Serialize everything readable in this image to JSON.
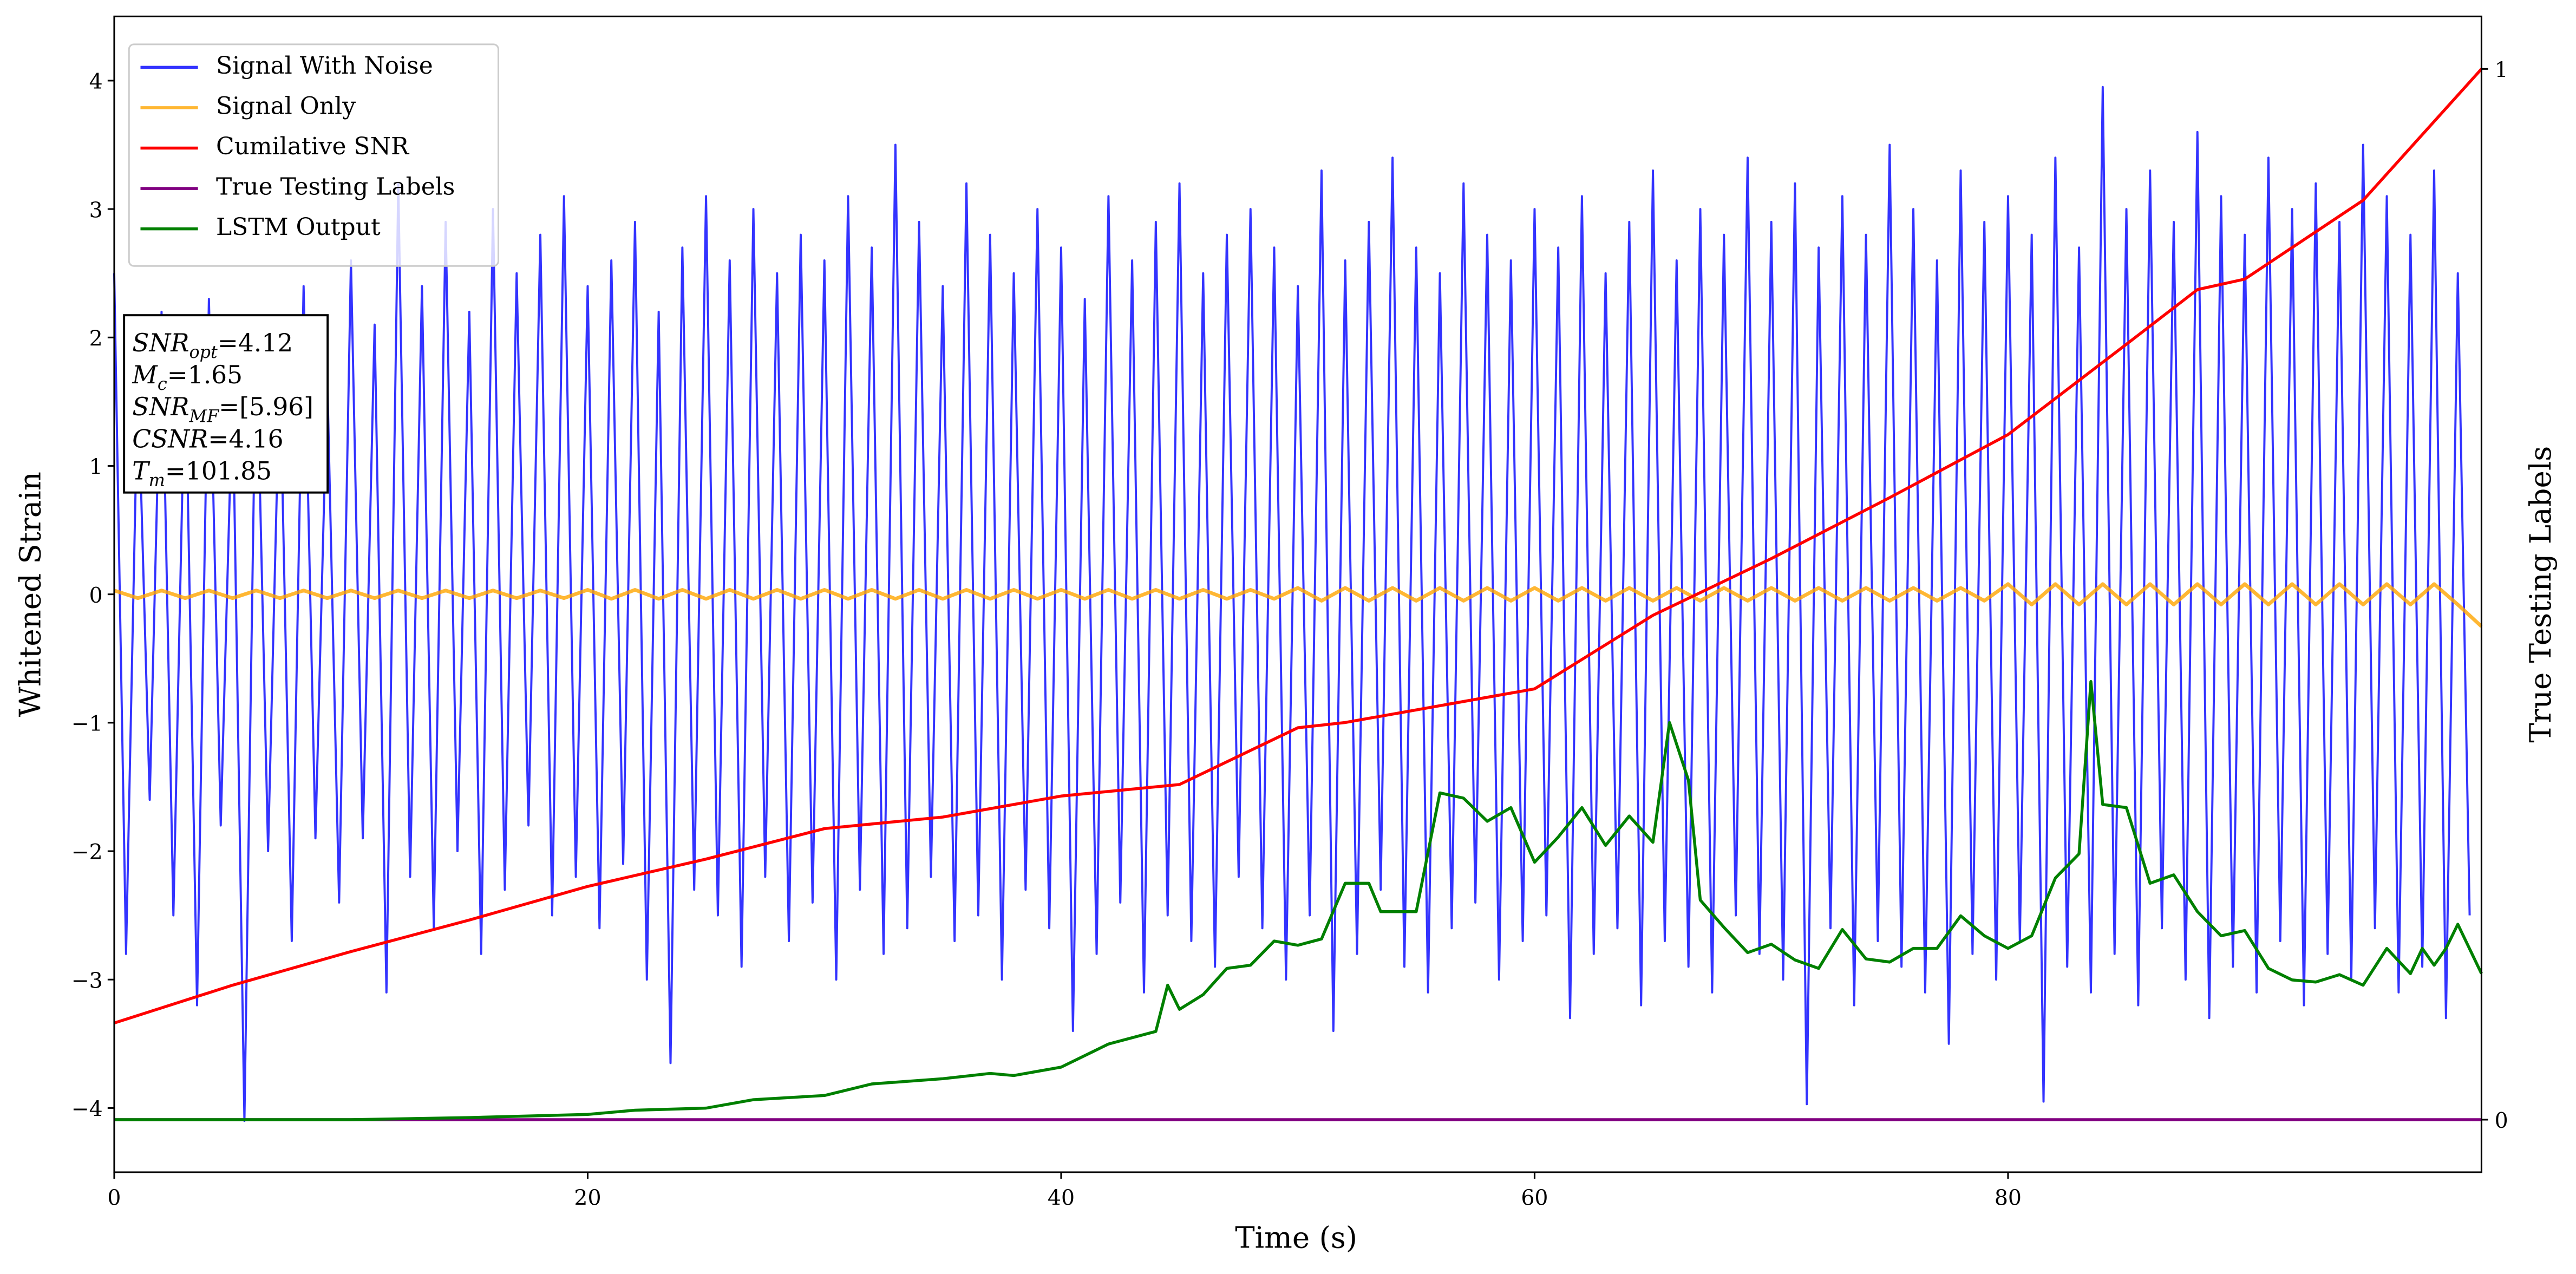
{
  "chart_data": {
    "type": "line",
    "xlabel": "Time (s)",
    "ylabel": "Whitened Strain",
    "y2label": "True Testing Labels",
    "xlim": [
      0,
      100
    ],
    "xticks": [
      0,
      20,
      40,
      60,
      80
    ],
    "ylim": [
      -4.5,
      4.5
    ],
    "yticks": [
      {
        "value": -4,
        "label": "−4"
      },
      {
        "value": -3,
        "label": "−3"
      },
      {
        "value": -2,
        "label": "−2"
      },
      {
        "value": -1,
        "label": "−1"
      },
      0,
      1,
      2,
      3,
      4
    ],
    "y2lim": [
      -0.05,
      1.05
    ],
    "y2ticks": [
      0,
      1
    ],
    "legend": "upper left",
    "grid": false,
    "annotations": [
      {
        "main": "SNR",
        "sub": "opt",
        "value": "=4.12"
      },
      {
        "main": "M",
        "sub": "c",
        "value": "=1.65"
      },
      {
        "main": "SNR",
        "sub": "MF",
        "value": "=[5.96]"
      },
      {
        "main": "CSNR",
        "value": "=4.16"
      },
      {
        "main": "T",
        "sub": "m",
        "value": "=101.85"
      }
    ],
    "series": [
      {
        "name": "Signal With Noise",
        "color": "#0000ff",
        "alpha": 0.8,
        "axis": "y",
        "x": [
          0,
          0.5,
          1,
          1.5,
          2,
          2.5,
          3,
          3.5,
          4,
          4.5,
          5,
          5.5,
          6,
          6.5,
          7,
          7.5,
          8,
          8.5,
          9,
          9.5,
          10,
          10.5,
          11,
          11.5,
          12,
          12.5,
          13,
          13.5,
          14,
          14.5,
          15,
          15.5,
          16,
          16.5,
          17,
          17.5,
          18,
          18.5,
          19,
          19.5,
          20,
          20.5,
          21,
          21.5,
          22,
          22.5,
          23,
          23.5,
          24,
          24.5,
          25,
          25.5,
          26,
          26.5,
          27,
          27.5,
          28,
          28.5,
          29,
          29.5,
          30,
          30.5,
          31,
          31.5,
          32,
          32.5,
          33,
          33.5,
          34,
          34.5,
          35,
          35.5,
          36,
          36.5,
          37,
          37.5,
          38,
          38.5,
          39,
          39.5,
          40,
          40.5,
          41,
          41.5,
          42,
          42.5,
          43,
          43.5,
          44,
          44.5,
          45,
          45.5,
          46,
          46.5,
          47,
          47.5,
          48,
          48.5,
          49,
          49.5,
          50,
          50.5,
          51,
          51.5,
          52,
          52.5,
          53,
          53.5,
          54,
          54.5,
          55,
          55.5,
          56,
          56.5,
          57,
          57.5,
          58,
          58.5,
          59,
          59.5,
          60,
          60.5,
          61,
          61.5,
          62,
          62.5,
          63,
          63.5,
          64,
          64.5,
          65,
          65.5,
          66,
          66.5,
          67,
          67.5,
          68,
          68.5,
          69,
          69.5,
          70,
          70.5,
          71,
          71.5,
          72,
          72.5,
          73,
          73.5,
          74,
          74.5,
          75,
          75.5,
          76,
          76.5,
          77,
          77.5,
          78,
          78.5,
          79,
          79.5,
          80,
          80.5,
          81,
          81.5,
          82,
          82.5,
          83,
          83.5,
          84,
          84.5,
          85,
          85.5,
          86,
          86.5,
          87,
          87.5,
          88,
          88.5,
          89,
          89.5,
          90,
          90.5,
          91,
          91.5,
          92,
          92.5,
          93,
          93.5,
          94,
          94.5,
          95,
          95.5,
          96,
          96.5,
          97,
          97.5,
          98,
          98.5,
          99,
          99.5
        ],
        "values": [
          2.5,
          -2.8,
          1.7,
          -1.6,
          2.2,
          -2.5,
          1.9,
          -3.2,
          2.3,
          -1.8,
          1.6,
          -4.1,
          2.1,
          -2.0,
          1.8,
          -2.7,
          2.4,
          -1.9,
          1.7,
          -2.4,
          2.6,
          -1.9,
          2.1,
          -3.1,
          3.2,
          -2.2,
          2.4,
          -2.6,
          2.9,
          -2.0,
          2.2,
          -2.8,
          3.0,
          -2.3,
          2.5,
          -1.8,
          2.8,
          -2.5,
          3.1,
          -2.2,
          2.4,
          -2.6,
          2.6,
          -2.1,
          2.9,
          -3.0,
          2.2,
          -3.65,
          2.7,
          -2.3,
          3.1,
          -2.5,
          2.6,
          -2.9,
          3.0,
          -2.2,
          2.5,
          -2.7,
          2.8,
          -2.4,
          2.6,
          -3.0,
          3.1,
          -2.3,
          2.7,
          -2.8,
          3.5,
          -2.6,
          2.9,
          -2.2,
          2.4,
          -2.7,
          3.2,
          -2.5,
          2.8,
          -3.0,
          2.5,
          -2.3,
          3.0,
          -2.6,
          2.7,
          -3.4,
          2.3,
          -2.8,
          3.1,
          -2.4,
          2.6,
          -3.1,
          2.9,
          -2.5,
          3.2,
          -2.7,
          2.5,
          -2.9,
          2.8,
          -2.2,
          3.0,
          -2.6,
          2.7,
          -3.0,
          2.4,
          -2.5,
          3.3,
          -3.4,
          2.6,
          -2.8,
          2.9,
          -2.3,
          3.4,
          -2.9,
          2.7,
          -3.1,
          2.5,
          -2.6,
          3.2,
          -2.4,
          2.8,
          -3.0,
          2.6,
          -2.7,
          3.0,
          -2.5,
          2.7,
          -3.3,
          3.1,
          -2.8,
          2.5,
          -2.6,
          2.9,
          -3.2,
          3.3,
          -2.7,
          2.6,
          -2.9,
          3.0,
          -3.1,
          2.8,
          -2.5,
          3.4,
          -2.8,
          2.9,
          -3.0,
          3.2,
          -3.97,
          2.7,
          -2.6,
          3.1,
          -3.2,
          2.8,
          -2.7,
          3.5,
          -2.9,
          3.0,
          -3.1,
          2.6,
          -3.5,
          3.3,
          -2.8,
          2.9,
          -3.0,
          3.1,
          -2.7,
          2.8,
          -3.95,
          3.4,
          -2.9,
          2.7,
          -3.1,
          3.95,
          -2.8,
          3.0,
          -3.2,
          3.3,
          -2.6,
          2.9,
          -3.0,
          3.6,
          -3.3,
          3.1,
          -2.9,
          2.8,
          -3.1,
          3.4,
          -2.7,
          3.0,
          -3.2,
          3.2,
          -2.8,
          2.9,
          -3.0,
          3.5,
          -2.6,
          3.1,
          -3.1,
          2.8,
          -2.9,
          3.3,
          -3.3,
          2.5,
          -2.5
        ]
      },
      {
        "name": "Signal Only",
        "color": "#ffa500",
        "alpha": 0.8,
        "axis": "y",
        "x": [
          0,
          1,
          2,
          3,
          4,
          5,
          6,
          7,
          8,
          9,
          10,
          11,
          12,
          13,
          14,
          15,
          16,
          17,
          18,
          19,
          20,
          21,
          22,
          23,
          24,
          25,
          26,
          27,
          28,
          29,
          30,
          31,
          32,
          33,
          34,
          35,
          36,
          37,
          38,
          39,
          40,
          41,
          42,
          43,
          44,
          45,
          46,
          47,
          48,
          49,
          50,
          51,
          52,
          53,
          54,
          55,
          56,
          57,
          58,
          59,
          60,
          61,
          62,
          63,
          64,
          65,
          66,
          67,
          68,
          69,
          70,
          71,
          72,
          73,
          74,
          75,
          76,
          77,
          78,
          79,
          80,
          81,
          82,
          83,
          84,
          85,
          86,
          87,
          88,
          89,
          90,
          91,
          92,
          93,
          94,
          95,
          96,
          97,
          98,
          99,
          100
        ],
        "values": [
          0.03,
          -0.03,
          0.03,
          -0.03,
          0.03,
          -0.03,
          0.03,
          -0.03,
          0.03,
          -0.03,
          0.03,
          -0.03,
          0.03,
          -0.03,
          0.03,
          -0.03,
          0.03,
          -0.03,
          0.03,
          -0.03,
          0.035,
          -0.035,
          0.035,
          -0.035,
          0.035,
          -0.035,
          0.035,
          -0.035,
          0.035,
          -0.035,
          0.035,
          -0.035,
          0.035,
          -0.035,
          0.035,
          -0.035,
          0.035,
          -0.035,
          0.035,
          -0.035,
          0.035,
          -0.035,
          0.035,
          -0.035,
          0.035,
          -0.035,
          0.035,
          -0.035,
          0.035,
          -0.035,
          0.05,
          -0.05,
          0.05,
          -0.05,
          0.05,
          -0.05,
          0.05,
          -0.05,
          0.05,
          -0.05,
          0.05,
          -0.05,
          0.05,
          -0.05,
          0.05,
          -0.05,
          0.05,
          -0.05,
          0.05,
          -0.05,
          0.05,
          -0.05,
          0.05,
          -0.05,
          0.05,
          -0.05,
          0.05,
          -0.05,
          0.05,
          -0.05,
          0.08,
          -0.08,
          0.08,
          -0.08,
          0.08,
          -0.08,
          0.08,
          -0.08,
          0.08,
          -0.08,
          0.08,
          -0.08,
          0.08,
          -0.08,
          0.08,
          -0.08,
          0.08,
          -0.08,
          0.08,
          -0.08,
          -0.25
        ]
      },
      {
        "name": "Cumilative SNR",
        "color": "#ff0000",
        "alpha": 1,
        "axis": "y2",
        "x": [
          0,
          5,
          10,
          15,
          20,
          25,
          30,
          35,
          40,
          45,
          50,
          52,
          55,
          60,
          65,
          70,
          75,
          80,
          85,
          88,
          90,
          95,
          100
        ],
        "values": [
          0.092,
          0.128,
          0.16,
          0.19,
          0.222,
          0.248,
          0.277,
          0.288,
          0.308,
          0.319,
          0.373,
          0.378,
          0.39,
          0.41,
          0.48,
          0.534,
          0.592,
          0.652,
          0.738,
          0.79,
          0.8,
          0.875,
          1.0
        ]
      },
      {
        "name": "True Testing Labels",
        "color": "#800080",
        "alpha": 1,
        "axis": "y2",
        "x": [
          0,
          100
        ],
        "values": [
          0,
          0
        ]
      },
      {
        "name": "LSTM Output",
        "color": "#008000",
        "alpha": 1,
        "axis": "y2",
        "x": [
          0,
          5,
          10,
          15,
          20,
          22,
          25,
          27,
          30,
          32,
          35,
          37,
          38,
          40,
          42,
          44,
          44.5,
          45,
          46,
          47,
          48,
          49,
          50,
          51,
          52,
          53,
          53.5,
          55,
          56,
          57,
          58,
          59,
          60,
          61,
          62,
          63,
          64,
          65,
          65.7,
          66.5,
          67,
          68,
          69,
          70,
          71,
          72,
          73,
          74,
          75,
          76,
          77,
          78,
          79,
          80,
          81,
          82,
          83,
          83.5,
          84,
          85,
          86,
          87,
          88,
          89,
          90,
          91,
          92,
          93,
          94,
          95,
          96,
          97,
          97.5,
          98,
          98.5,
          99,
          100
        ],
        "values": [
          0,
          0,
          0,
          0.002,
          0.005,
          0.009,
          0.011,
          0.019,
          0.023,
          0.034,
          0.039,
          0.044,
          0.042,
          0.05,
          0.072,
          0.084,
          0.128,
          0.105,
          0.119,
          0.144,
          0.147,
          0.17,
          0.166,
          0.172,
          0.225,
          0.225,
          0.198,
          0.198,
          0.311,
          0.306,
          0.284,
          0.297,
          0.245,
          0.269,
          0.297,
          0.261,
          0.289,
          0.264,
          0.378,
          0.323,
          0.209,
          0.183,
          0.159,
          0.167,
          0.152,
          0.144,
          0.181,
          0.153,
          0.15,
          0.163,
          0.163,
          0.194,
          0.175,
          0.163,
          0.175,
          0.23,
          0.253,
          0.417,
          0.3,
          0.297,
          0.225,
          0.233,
          0.198,
          0.175,
          0.18,
          0.144,
          0.133,
          0.131,
          0.138,
          0.128,
          0.163,
          0.139,
          0.163,
          0.147,
          0.163,
          0.186,
          0.139
        ]
      }
    ]
  }
}
